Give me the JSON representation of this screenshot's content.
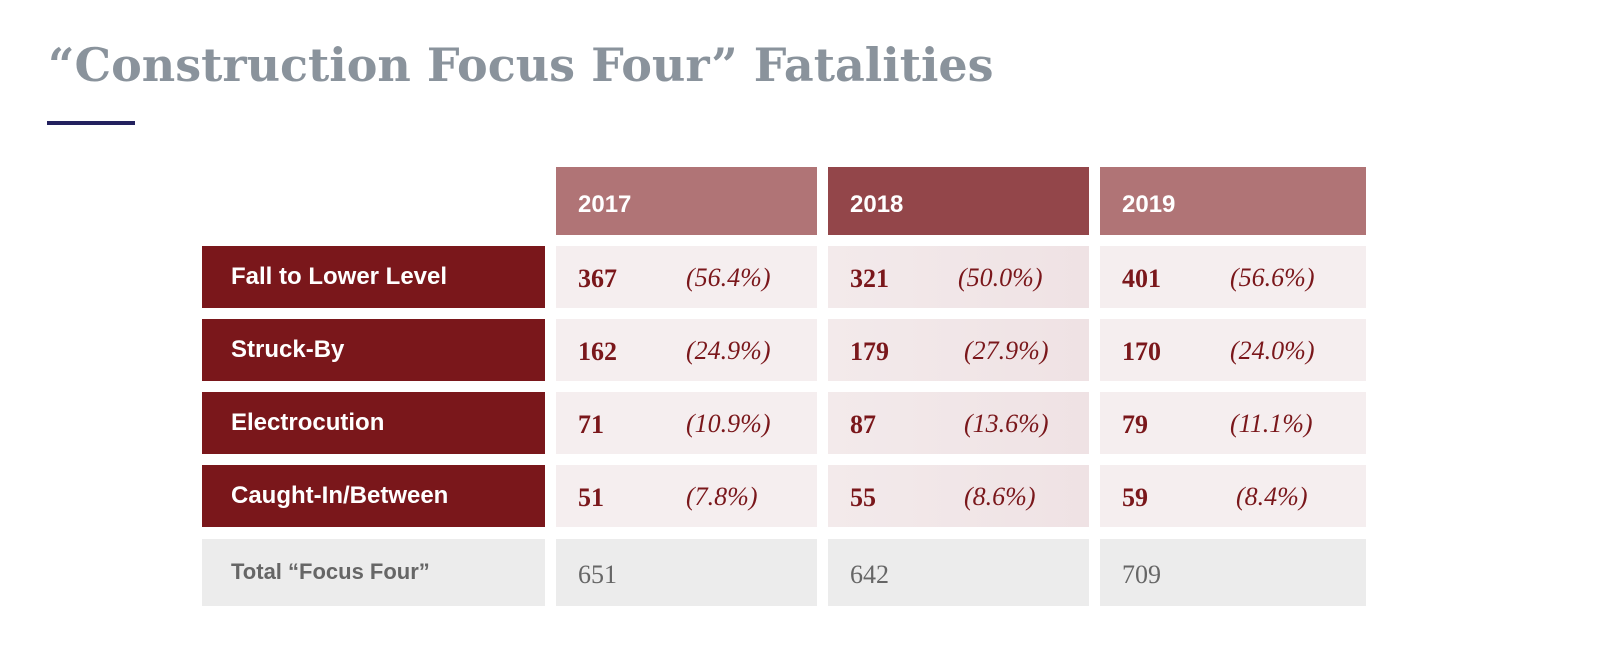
{
  "title": "“Construction Focus Four” Fatalities",
  "colors": {
    "header_2017": "#b07476",
    "header_2018": "#93464a",
    "header_2019": "#b07476",
    "label_bg": "#7a171b",
    "cell_bg": "#f5eeef",
    "cell_bg_2018": "#efe2e4",
    "total_bg": "#ececec",
    "title": "#8a939c",
    "rule": "#23215e"
  },
  "table": {
    "columns": [
      "2017",
      "2018",
      "2019"
    ],
    "rows": [
      {
        "label": "Fall to Lower Level",
        "values": [
          {
            "n": "367",
            "p": "(56.4%)"
          },
          {
            "n": "321",
            "p": "(50.0%)"
          },
          {
            "n": "401",
            "p": "(56.6%)"
          }
        ]
      },
      {
        "label": "Struck-By",
        "values": [
          {
            "n": "162",
            "p": "(24.9%)"
          },
          {
            "n": "179",
            "p": "(27.9%)"
          },
          {
            "n": "170",
            "p": "(24.0%)"
          }
        ]
      },
      {
        "label": "Electrocution",
        "values": [
          {
            "n": "71",
            "p": "(10.9%)"
          },
          {
            "n": "87",
            "p": "(13.6%)"
          },
          {
            "n": "79",
            "p": "(11.1%)"
          }
        ]
      },
      {
        "label": "Caught-In/Between",
        "values": [
          {
            "n": "51",
            "p": "(7.8%)"
          },
          {
            "n": "55",
            "p": "(8.6%)"
          },
          {
            "n": "59",
            "p": "(8.4%)"
          }
        ]
      }
    ],
    "total": {
      "label": "Total “Focus Four”",
      "values": [
        "651",
        "642",
        "709"
      ]
    }
  }
}
